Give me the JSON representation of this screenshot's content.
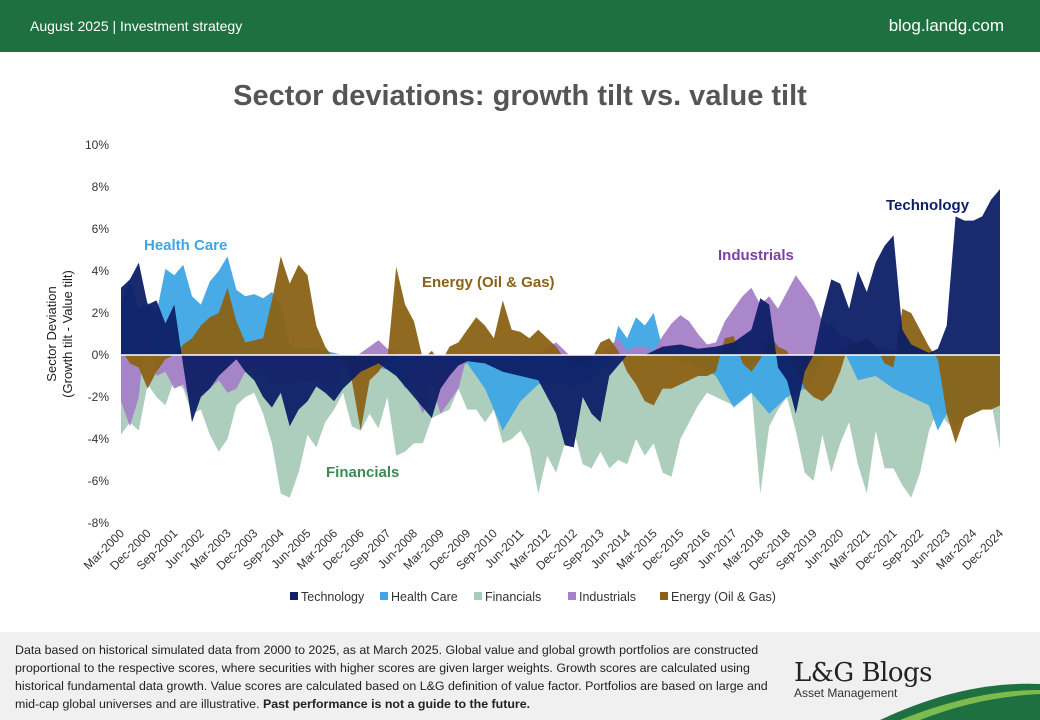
{
  "header": {
    "left": "August 2025 | Investment strategy",
    "right": "blog.landg.com"
  },
  "footer": {
    "note": "Data based on historical simulated data from 2000 to 2025, as at March 2025. Global value and global growth portfolios are constructed proportional to the respective scores, where securities with higher scores are given larger weights. Growth scores are calculated using historical fundamental data growth. Value scores are calculated based on L&G definition of value factor. Portfolios are based on large and mid-cap global universes and are illustrative.",
    "disclaimer": "Past performance is not a guide to the future.",
    "logo_main": "L&G Blogs",
    "logo_sub": "Asset Management"
  },
  "chart_data": {
    "type": "area",
    "title": "Sector deviations: growth tilt vs. value tilt",
    "ylabel": "Sector Deviation\n(Growth tilt - Value tilt)",
    "ylim": [
      -8,
      10
    ],
    "y_ticks": [
      "10%",
      "8%",
      "6%",
      "4%",
      "2%",
      "0%",
      "-2%",
      "-4%",
      "-6%",
      "-8%"
    ],
    "x_tick_labels": [
      "Mar-2000",
      "Dec-2000",
      "Sep-2001",
      "Jun-2002",
      "Mar-2003",
      "Dec-2003",
      "Sep-2004",
      "Jun-2005",
      "Mar-2006",
      "Dec-2006",
      "Sep-2007",
      "Jun-2008",
      "Mar-2009",
      "Dec-2009",
      "Sep-2010",
      "Jun-2011",
      "Mar-2012",
      "Dec-2012",
      "Sep-2013",
      "Jun-2014",
      "Mar-2015",
      "Dec-2015",
      "Sep-2016",
      "Jun-2017",
      "Mar-2018",
      "Dec-2018",
      "Sep-2019",
      "Jun-2020",
      "Mar-2021",
      "Dec-2021",
      "Sep-2022",
      "Jun-2023",
      "Mar-2024",
      "Dec-2024"
    ],
    "x_start": 2000.25,
    "x_end": 2025.0,
    "grid": false,
    "legend_position": "bottom",
    "series": [
      {
        "name": "Technology",
        "color": "#0d1f66",
        "x": [
          2000.25,
          2000.5,
          2000.75,
          2001.0,
          2001.25,
          2001.5,
          2001.75,
          2002.0,
          2002.25,
          2002.5,
          2002.75,
          2003.0,
          2003.25,
          2003.5,
          2003.75,
          2004.0,
          2004.25,
          2004.5,
          2004.75,
          2005.0,
          2005.25,
          2005.5,
          2005.75,
          2006.0,
          2006.25,
          2006.5,
          2006.75,
          2007.0,
          2007.5,
          2008.0,
          2008.5,
          2009.0,
          2009.25,
          2009.5,
          2009.75,
          2010.0,
          2010.5,
          2011.0,
          2011.5,
          2012.0,
          2012.5,
          2012.75,
          2013.0,
          2013.25,
          2013.5,
          2013.75,
          2014.0,
          2014.5,
          2015.0,
          2015.5,
          2016.0,
          2016.5,
          2017.0,
          2017.5,
          2018.0,
          2018.25,
          2018.5,
          2018.75,
          2019.0,
          2019.25,
          2019.5,
          2019.75,
          2020.0,
          2020.25,
          2020.5,
          2020.75,
          2021.0,
          2021.25,
          2021.5,
          2021.75,
          2022.0,
          2022.25,
          2022.5,
          2022.75,
          2023.0,
          2023.25,
          2023.5,
          2023.75,
          2024.0,
          2024.25,
          2024.5,
          2024.75,
          2025.0
        ],
        "values": [
          3.2,
          3.6,
          4.4,
          2.4,
          2.6,
          1.5,
          2.4,
          -0.5,
          -3.2,
          -2.0,
          -1.6,
          -1.0,
          -0.6,
          -0.2,
          -0.8,
          -1.2,
          -2.0,
          -2.5,
          -1.8,
          -3.4,
          -2.6,
          -2.2,
          -1.5,
          -1.8,
          -2.2,
          -1.6,
          -1.2,
          -0.8,
          -0.4,
          -1.0,
          -2.0,
          -3.0,
          -1.6,
          -1.0,
          -0.5,
          -0.3,
          -0.4,
          -0.8,
          -1.0,
          -1.2,
          -2.8,
          -4.3,
          -4.4,
          -2.0,
          -2.8,
          -3.2,
          -1.0,
          0.0,
          0.0,
          0.4,
          0.5,
          0.3,
          0.4,
          0.6,
          1.2,
          2.7,
          2.4,
          -0.6,
          -1.2,
          -2.8,
          -0.8,
          0.0,
          2.0,
          3.6,
          3.4,
          2.2,
          4.0,
          3.0,
          4.4,
          5.2,
          5.7,
          1.2,
          0.5,
          0.3,
          0.1,
          0.3,
          1.4,
          6.6,
          6.4,
          6.4,
          6.6,
          7.4,
          7.9
        ]
      },
      {
        "name": "Health Care",
        "color": "#3ea6e4",
        "x": [
          2000.25,
          2000.5,
          2000.75,
          2001.0,
          2001.25,
          2001.5,
          2001.75,
          2002.0,
          2002.25,
          2002.5,
          2002.75,
          2003.0,
          2003.25,
          2003.5,
          2003.75,
          2004.0,
          2004.25,
          2004.5,
          2004.75,
          2005.0,
          2005.25,
          2005.5,
          2006.0,
          2006.5,
          2007.0,
          2007.5,
          2008.0,
          2008.25,
          2008.5,
          2008.75,
          2009.0,
          2009.5,
          2010.0,
          2010.5,
          2011.0,
          2011.5,
          2012.0,
          2012.5,
          2013.0,
          2013.5,
          2014.0,
          2014.25,
          2014.5,
          2014.75,
          2015.0,
          2015.25,
          2015.5,
          2016.0,
          2016.5,
          2017.0,
          2017.5,
          2018.0,
          2018.5,
          2019.0,
          2019.5,
          2020.0,
          2020.25,
          2020.5,
          2021.0,
          2021.5,
          2022.0,
          2022.5,
          2023.0,
          2023.25,
          2023.5,
          2023.75,
          2024.0,
          2024.5,
          2025.0
        ],
        "values": [
          2.4,
          3.6,
          2.2,
          2.5,
          2.0,
          4.1,
          3.8,
          4.3,
          2.8,
          2.4,
          3.5,
          4.0,
          4.7,
          3.1,
          2.8,
          2.9,
          2.7,
          3.0,
          2.4,
          0.5,
          0.3,
          0.4,
          0.2,
          0.0,
          -0.4,
          -0.6,
          -0.8,
          -1.6,
          -1.2,
          -0.6,
          -0.2,
          -0.6,
          -0.4,
          -1.6,
          -3.6,
          -2.2,
          -1.4,
          -1.3,
          -1.5,
          -1.2,
          -0.4,
          1.4,
          0.8,
          1.8,
          1.4,
          2.0,
          0.3,
          -0.3,
          -0.5,
          -1.0,
          -2.5,
          -1.8,
          -2.8,
          -2.0,
          -1.6,
          -0.3,
          1.6,
          0.6,
          -1.2,
          -1.0,
          -1.6,
          -2.0,
          -2.4,
          -3.6,
          -2.8,
          -3.4,
          -3.0,
          -2.6,
          -2.4
        ]
      },
      {
        "name": "Financials",
        "color": "#a9cbb8",
        "x": [
          2000.25,
          2000.5,
          2000.75,
          2001.0,
          2001.25,
          2001.5,
          2001.75,
          2002.0,
          2002.25,
          2002.5,
          2002.75,
          2003.0,
          2003.25,
          2003.5,
          2003.75,
          2004.0,
          2004.25,
          2004.5,
          2004.75,
          2005.0,
          2005.25,
          2005.5,
          2005.75,
          2006.0,
          2006.25,
          2006.5,
          2006.75,
          2007.0,
          2007.25,
          2007.5,
          2007.75,
          2008.0,
          2008.25,
          2008.5,
          2008.75,
          2009.0,
          2009.25,
          2009.5,
          2009.75,
          2010.0,
          2010.25,
          2010.5,
          2010.75,
          2011.0,
          2011.25,
          2011.5,
          2011.75,
          2012.0,
          2012.25,
          2012.5,
          2012.75,
          2013.0,
          2013.25,
          2013.5,
          2013.75,
          2014.0,
          2014.25,
          2014.5,
          2014.75,
          2015.0,
          2015.25,
          2015.5,
          2015.75,
          2016.0,
          2016.25,
          2016.5,
          2016.75,
          2017.0,
          2017.25,
          2017.5,
          2017.75,
          2018.0,
          2018.25,
          2018.5,
          2018.75,
          2019.0,
          2019.25,
          2019.5,
          2019.75,
          2020.0,
          2020.25,
          2020.5,
          2020.75,
          2021.0,
          2021.25,
          2021.5,
          2021.75,
          2022.0,
          2022.25,
          2022.5,
          2022.75,
          2023.0,
          2023.25,
          2023.5,
          2023.75,
          2024.0,
          2024.25,
          2024.5,
          2024.75,
          2025.0
        ],
        "values": [
          -3.8,
          -3.2,
          -3.6,
          -1.4,
          -2.0,
          -2.4,
          -1.2,
          -1.6,
          -2.8,
          -2.6,
          -3.8,
          -4.6,
          -4.0,
          -2.4,
          -2.0,
          -1.8,
          -2.8,
          -4.2,
          -6.6,
          -6.8,
          -5.6,
          -3.8,
          -4.4,
          -3.2,
          -2.6,
          -1.8,
          -3.4,
          -3.6,
          -2.8,
          -3.5,
          -2.0,
          -4.8,
          -4.6,
          -4.2,
          -4.2,
          -3.0,
          -2.8,
          -2.6,
          -1.6,
          -2.6,
          -2.6,
          -3.2,
          -2.6,
          -4.2,
          -4.0,
          -3.6,
          -4.4,
          -6.6,
          -4.8,
          -5.6,
          -4.2,
          -3.6,
          -5.2,
          -5.4,
          -4.6,
          -5.4,
          -5.0,
          -5.2,
          -4.0,
          -4.8,
          -4.2,
          -5.6,
          -5.8,
          -4.0,
          -3.2,
          -2.4,
          -1.8,
          -2.0,
          -2.2,
          -2.4,
          -2.0,
          -1.6,
          -6.6,
          -3.4,
          -2.6,
          -2.0,
          -3.6,
          -5.6,
          -6.0,
          -3.8,
          -5.6,
          -4.2,
          -3.2,
          -5.2,
          -6.6,
          -3.6,
          -5.4,
          -5.4,
          -6.2,
          -6.8,
          -5.6,
          -3.6,
          -2.6,
          -3.2,
          -3.6,
          -2.8,
          -2.4,
          -2.6,
          -2.2,
          -4.5
        ]
      },
      {
        "name": "Industrials",
        "color": "#a57fc8",
        "x": [
          2000.25,
          2000.5,
          2000.75,
          2001.0,
          2001.25,
          2001.5,
          2001.75,
          2002.0,
          2002.25,
          2002.5,
          2002.75,
          2003.0,
          2003.25,
          2003.5,
          2003.75,
          2004.0,
          2004.5,
          2005.0,
          2005.5,
          2006.0,
          2006.25,
          2006.5,
          2006.75,
          2007.0,
          2007.25,
          2007.5,
          2007.75,
          2008.0,
          2008.25,
          2008.5,
          2008.75,
          2009.0,
          2009.25,
          2009.5,
          2009.75,
          2010.0,
          2011.0,
          2012.0,
          2012.5,
          2013.0,
          2013.5,
          2014.0,
          2014.25,
          2014.5,
          2014.75,
          2015.0,
          2015.25,
          2015.5,
          2015.75,
          2016.0,
          2016.25,
          2016.5,
          2016.75,
          2017.0,
          2017.25,
          2017.5,
          2017.75,
          2018.0,
          2018.25,
          2018.5,
          2018.75,
          2019.0,
          2019.25,
          2019.5,
          2019.75,
          2020.0,
          2020.5,
          2021.0,
          2021.5,
          2022.0,
          2022.5,
          2023.0,
          2024.0,
          2025.0
        ],
        "values": [
          -2.2,
          -3.4,
          -2.0,
          2.2,
          -1.0,
          -0.8,
          -1.6,
          -1.4,
          -2.4,
          -1.8,
          -1.6,
          -1.2,
          -1.8,
          -1.6,
          -0.8,
          -0.6,
          -1.4,
          -1.4,
          -1.2,
          -1.4,
          -1.8,
          -0.6,
          -0.2,
          0.1,
          0.4,
          0.7,
          0.3,
          0.2,
          -0.6,
          -1.8,
          -2.8,
          -1.4,
          -2.8,
          -2.2,
          -1.6,
          0.0,
          0.0,
          0.1,
          0.6,
          -0.2,
          -0.4,
          0.4,
          0.8,
          0.2,
          0.4,
          0.4,
          0.2,
          0.9,
          1.5,
          1.9,
          1.6,
          1.0,
          0.5,
          0.6,
          1.6,
          2.2,
          2.8,
          3.2,
          2.4,
          2.8,
          2.2,
          3.0,
          3.8,
          3.2,
          2.6,
          1.6,
          1.0,
          0.6,
          0.4,
          0.2,
          0.1,
          0.0,
          0.0,
          0.0
        ]
      },
      {
        "name": "Energy (Oil & Gas)",
        "color": "#8b6215",
        "x": [
          2000.25,
          2000.5,
          2000.75,
          2001.0,
          2001.25,
          2001.5,
          2001.75,
          2002.0,
          2002.25,
          2002.5,
          2002.75,
          2003.0,
          2003.25,
          2003.5,
          2003.75,
          2004.0,
          2004.25,
          2004.5,
          2004.75,
          2005.0,
          2005.25,
          2005.5,
          2005.75,
          2006.0,
          2006.25,
          2006.5,
          2006.75,
          2007.0,
          2007.25,
          2007.5,
          2007.75,
          2008.0,
          2008.25,
          2008.5,
          2008.75,
          2009.0,
          2009.25,
          2009.5,
          2009.75,
          2010.0,
          2010.25,
          2010.5,
          2010.75,
          2011.0,
          2011.25,
          2011.5,
          2011.75,
          2012.0,
          2012.25,
          2012.5,
          2012.75,
          2013.0,
          2013.25,
          2013.5,
          2013.75,
          2014.0,
          2014.25,
          2014.5,
          2014.75,
          2015.0,
          2015.25,
          2015.5,
          2015.75,
          2016.0,
          2016.25,
          2016.5,
          2016.75,
          2017.0,
          2017.25,
          2017.5,
          2017.75,
          2018.0,
          2018.25,
          2018.5,
          2018.75,
          2019.0,
          2019.25,
          2019.5,
          2019.75,
          2020.0,
          2020.25,
          2020.5,
          2020.75,
          2021.0,
          2021.25,
          2021.5,
          2021.75,
          2022.0,
          2022.25,
          2022.5,
          2022.75,
          2023.0,
          2023.25,
          2023.5,
          2023.75,
          2024.0,
          2024.25,
          2024.5,
          2024.75,
          2025.0
        ],
        "values": [
          0.3,
          -0.4,
          -0.6,
          -1.6,
          -0.8,
          -0.2,
          0.0,
          0.5,
          0.8,
          1.4,
          1.8,
          2.0,
          3.2,
          1.6,
          0.6,
          0.7,
          0.8,
          2.6,
          4.7,
          3.4,
          4.3,
          3.8,
          1.4,
          0.4,
          -0.2,
          -0.2,
          -1.2,
          -3.6,
          -1.2,
          -0.8,
          -0.2,
          4.2,
          2.4,
          1.6,
          -0.2,
          0.2,
          -0.4,
          0.4,
          0.6,
          1.2,
          1.8,
          1.4,
          0.8,
          2.6,
          1.2,
          1.1,
          0.8,
          1.2,
          0.8,
          0.4,
          -0.2,
          -0.4,
          -0.4,
          -0.2,
          0.6,
          0.8,
          0.2,
          -0.8,
          -1.4,
          -2.2,
          -2.4,
          -1.6,
          -1.6,
          -1.4,
          -1.2,
          -1.0,
          -1.0,
          -0.8,
          0.8,
          0.9,
          -0.4,
          -0.8,
          -0.2,
          1.0,
          0.4,
          0.2,
          -0.6,
          -1.6,
          -2.0,
          -2.2,
          -1.8,
          -0.8,
          0.6,
          0.6,
          0.8,
          0.4,
          -0.4,
          -0.6,
          2.2,
          2.0,
          1.2,
          0.4,
          -0.2,
          -2.8,
          -4.2,
          -3.0,
          -2.8,
          -2.6,
          -2.6,
          -2.4
        ]
      }
    ],
    "annotations": [
      {
        "text": "Health Care",
        "color": "#3ea6e4"
      },
      {
        "text": "Energy (Oil & Gas)",
        "color": "#8b6215"
      },
      {
        "text": "Industrials",
        "color": "#7d3fa8"
      },
      {
        "text": "Technology",
        "color": "#0d1f66"
      },
      {
        "text": "Financials",
        "color": "#3d8a58"
      }
    ]
  }
}
